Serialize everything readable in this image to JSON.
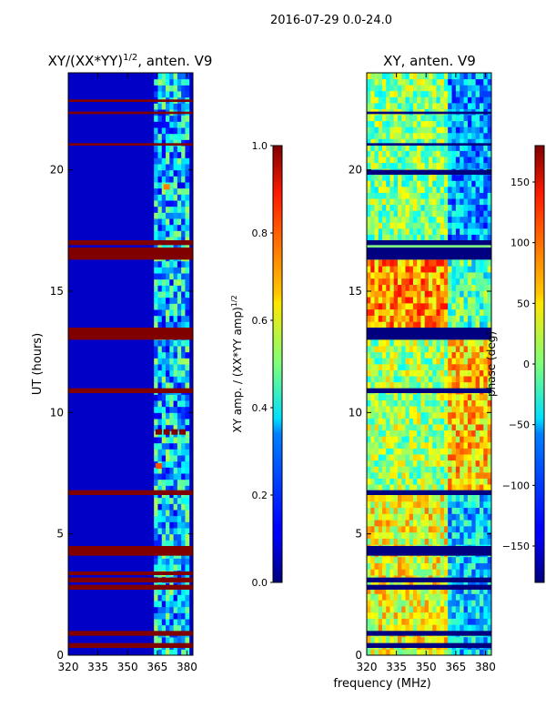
{
  "suptitle": "2016-07-29 0.0-24.0",
  "xlabel_shared": "frequency (MHz)",
  "chart_data": [
    {
      "type": "heatmap",
      "name": "amp-panel",
      "title": "XY/(XX*YY)",
      "title_exponent": "1/2",
      "title_suffix": ", anten. V9",
      "xlabel": "",
      "ylabel": "UT (hours)",
      "xlim": [
        320,
        383
      ],
      "ylim": [
        0,
        24
      ],
      "xticks": [
        "320",
        "335",
        "350",
        "365",
        "380"
      ],
      "xtick_values": [
        320,
        335,
        350,
        365,
        380
      ],
      "yticks": [
        "0",
        "5",
        "10",
        "15",
        "20"
      ],
      "ytick_values": [
        0,
        5,
        10,
        15,
        20
      ],
      "colormap": "jet",
      "background_level": 0.07,
      "flagged_bands_hours": [
        [
          0.3,
          0.5
        ],
        [
          0.8,
          1.0
        ],
        [
          2.7,
          2.9
        ],
        [
          3.0,
          3.2
        ],
        [
          3.3,
          3.45
        ],
        [
          4.1,
          4.5
        ],
        [
          6.6,
          6.8
        ],
        [
          10.8,
          11.0
        ],
        [
          13.0,
          13.5
        ],
        [
          16.3,
          16.8
        ],
        [
          16.9,
          17.1
        ],
        [
          21.0,
          21.1
        ],
        [
          22.3,
          22.4
        ],
        [
          22.8,
          22.9
        ]
      ],
      "flag_value": 1.0,
      "active_freq_range_mhz": [
        363,
        381
      ],
      "active_level_range": [
        0.1,
        0.55
      ],
      "hot_spots": [
        {
          "freq": 365.5,
          "hour": 9.2,
          "value": 1.0
        },
        {
          "freq": 369.5,
          "hour": 9.2,
          "value": 1.0
        },
        {
          "freq": 373.5,
          "hour": 9.2,
          "value": 1.0
        },
        {
          "freq": 377.5,
          "hour": 9.2,
          "value": 1.0
        },
        {
          "freq": 365.5,
          "hour": 7.8,
          "value": 0.8
        },
        {
          "freq": 369.5,
          "hour": 19.3,
          "value": 0.75
        }
      ]
    },
    {
      "type": "heatmap",
      "name": "phase-panel",
      "title": "XY, anten. V9",
      "xlabel": "frequency (MHz)",
      "ylabel": "",
      "xlim": [
        320,
        383
      ],
      "ylim": [
        0,
        24
      ],
      "xticks": [
        "320",
        "335",
        "350",
        "365",
        "380"
      ],
      "xtick_values": [
        320,
        335,
        350,
        365,
        380
      ],
      "yticks": [
        "0",
        "5",
        "10",
        "15",
        "20"
      ],
      "ytick_values": [
        0,
        5,
        10,
        15,
        20
      ],
      "colormap": "jet",
      "flagged_bands_hours": [
        [
          0.3,
          0.5
        ],
        [
          0.8,
          1.0
        ],
        [
          2.7,
          2.9
        ],
        [
          3.0,
          3.2
        ],
        [
          4.1,
          4.5
        ],
        [
          6.6,
          6.8
        ],
        [
          10.8,
          11.0
        ],
        [
          13.0,
          13.5
        ],
        [
          16.3,
          16.8
        ],
        [
          16.9,
          17.1
        ],
        [
          19.8,
          20.0
        ],
        [
          21.0,
          21.1
        ],
        [
          22.3,
          22.4
        ]
      ],
      "flag_value": -180,
      "phase_range": [
        -180,
        180
      ],
      "regions": [
        {
          "hours": [
            0,
            6.6
          ],
          "freq": [
            320,
            361
          ],
          "phase_mean": 40
        },
        {
          "hours": [
            0,
            6.6
          ],
          "freq": [
            361,
            383
          ],
          "phase_mean": -60
        },
        {
          "hours": [
            6.8,
            13.0
          ],
          "freq": [
            320,
            361
          ],
          "phase_mean": 10
        },
        {
          "hours": [
            6.8,
            13.0
          ],
          "freq": [
            361,
            383
          ],
          "phase_mean": 60
        },
        {
          "hours": [
            13.5,
            16.3
          ],
          "freq": [
            320,
            361
          ],
          "phase_mean": 80
        },
        {
          "hours": [
            13.5,
            16.3
          ],
          "freq": [
            361,
            383
          ],
          "phase_mean": -20
        },
        {
          "hours": [
            17.1,
            24
          ],
          "freq": [
            320,
            361
          ],
          "phase_mean": 0
        },
        {
          "hours": [
            17.1,
            24
          ],
          "freq": [
            361,
            383
          ],
          "phase_mean": -80
        }
      ]
    }
  ],
  "colorbars": [
    {
      "name": "amp-colorbar",
      "label": "XY amp. / (XX*YY amp)",
      "label_exponent": "1/2",
      "range": [
        0.0,
        1.0
      ],
      "ticks": [
        "0.0",
        "0.2",
        "0.4",
        "0.6",
        "0.8",
        "1.0"
      ],
      "tick_values": [
        0.0,
        0.2,
        0.4,
        0.6,
        0.8,
        1.0
      ]
    },
    {
      "name": "phase-colorbar",
      "label": "phase (deg)",
      "range": [
        -180,
        180
      ],
      "ticks": [
        "−150",
        "−100",
        "−50",
        "0",
        "50",
        "100",
        "150"
      ],
      "tick_values": [
        -150,
        -100,
        -50,
        0,
        50,
        100,
        150
      ]
    }
  ]
}
